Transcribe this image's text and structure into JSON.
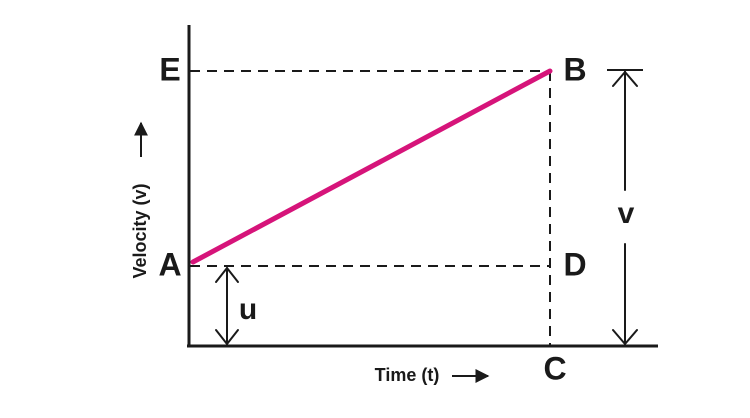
{
  "axes": {
    "x_label": "Time (t)",
    "y_label": "Velocity (v)"
  },
  "points": {
    "A": "A",
    "B": "B",
    "C": "C",
    "D": "D",
    "E": "E"
  },
  "quantities": {
    "u": "u",
    "v": "v"
  },
  "colors": {
    "line": "#d6147a",
    "ink": "#1a1a1a"
  }
}
